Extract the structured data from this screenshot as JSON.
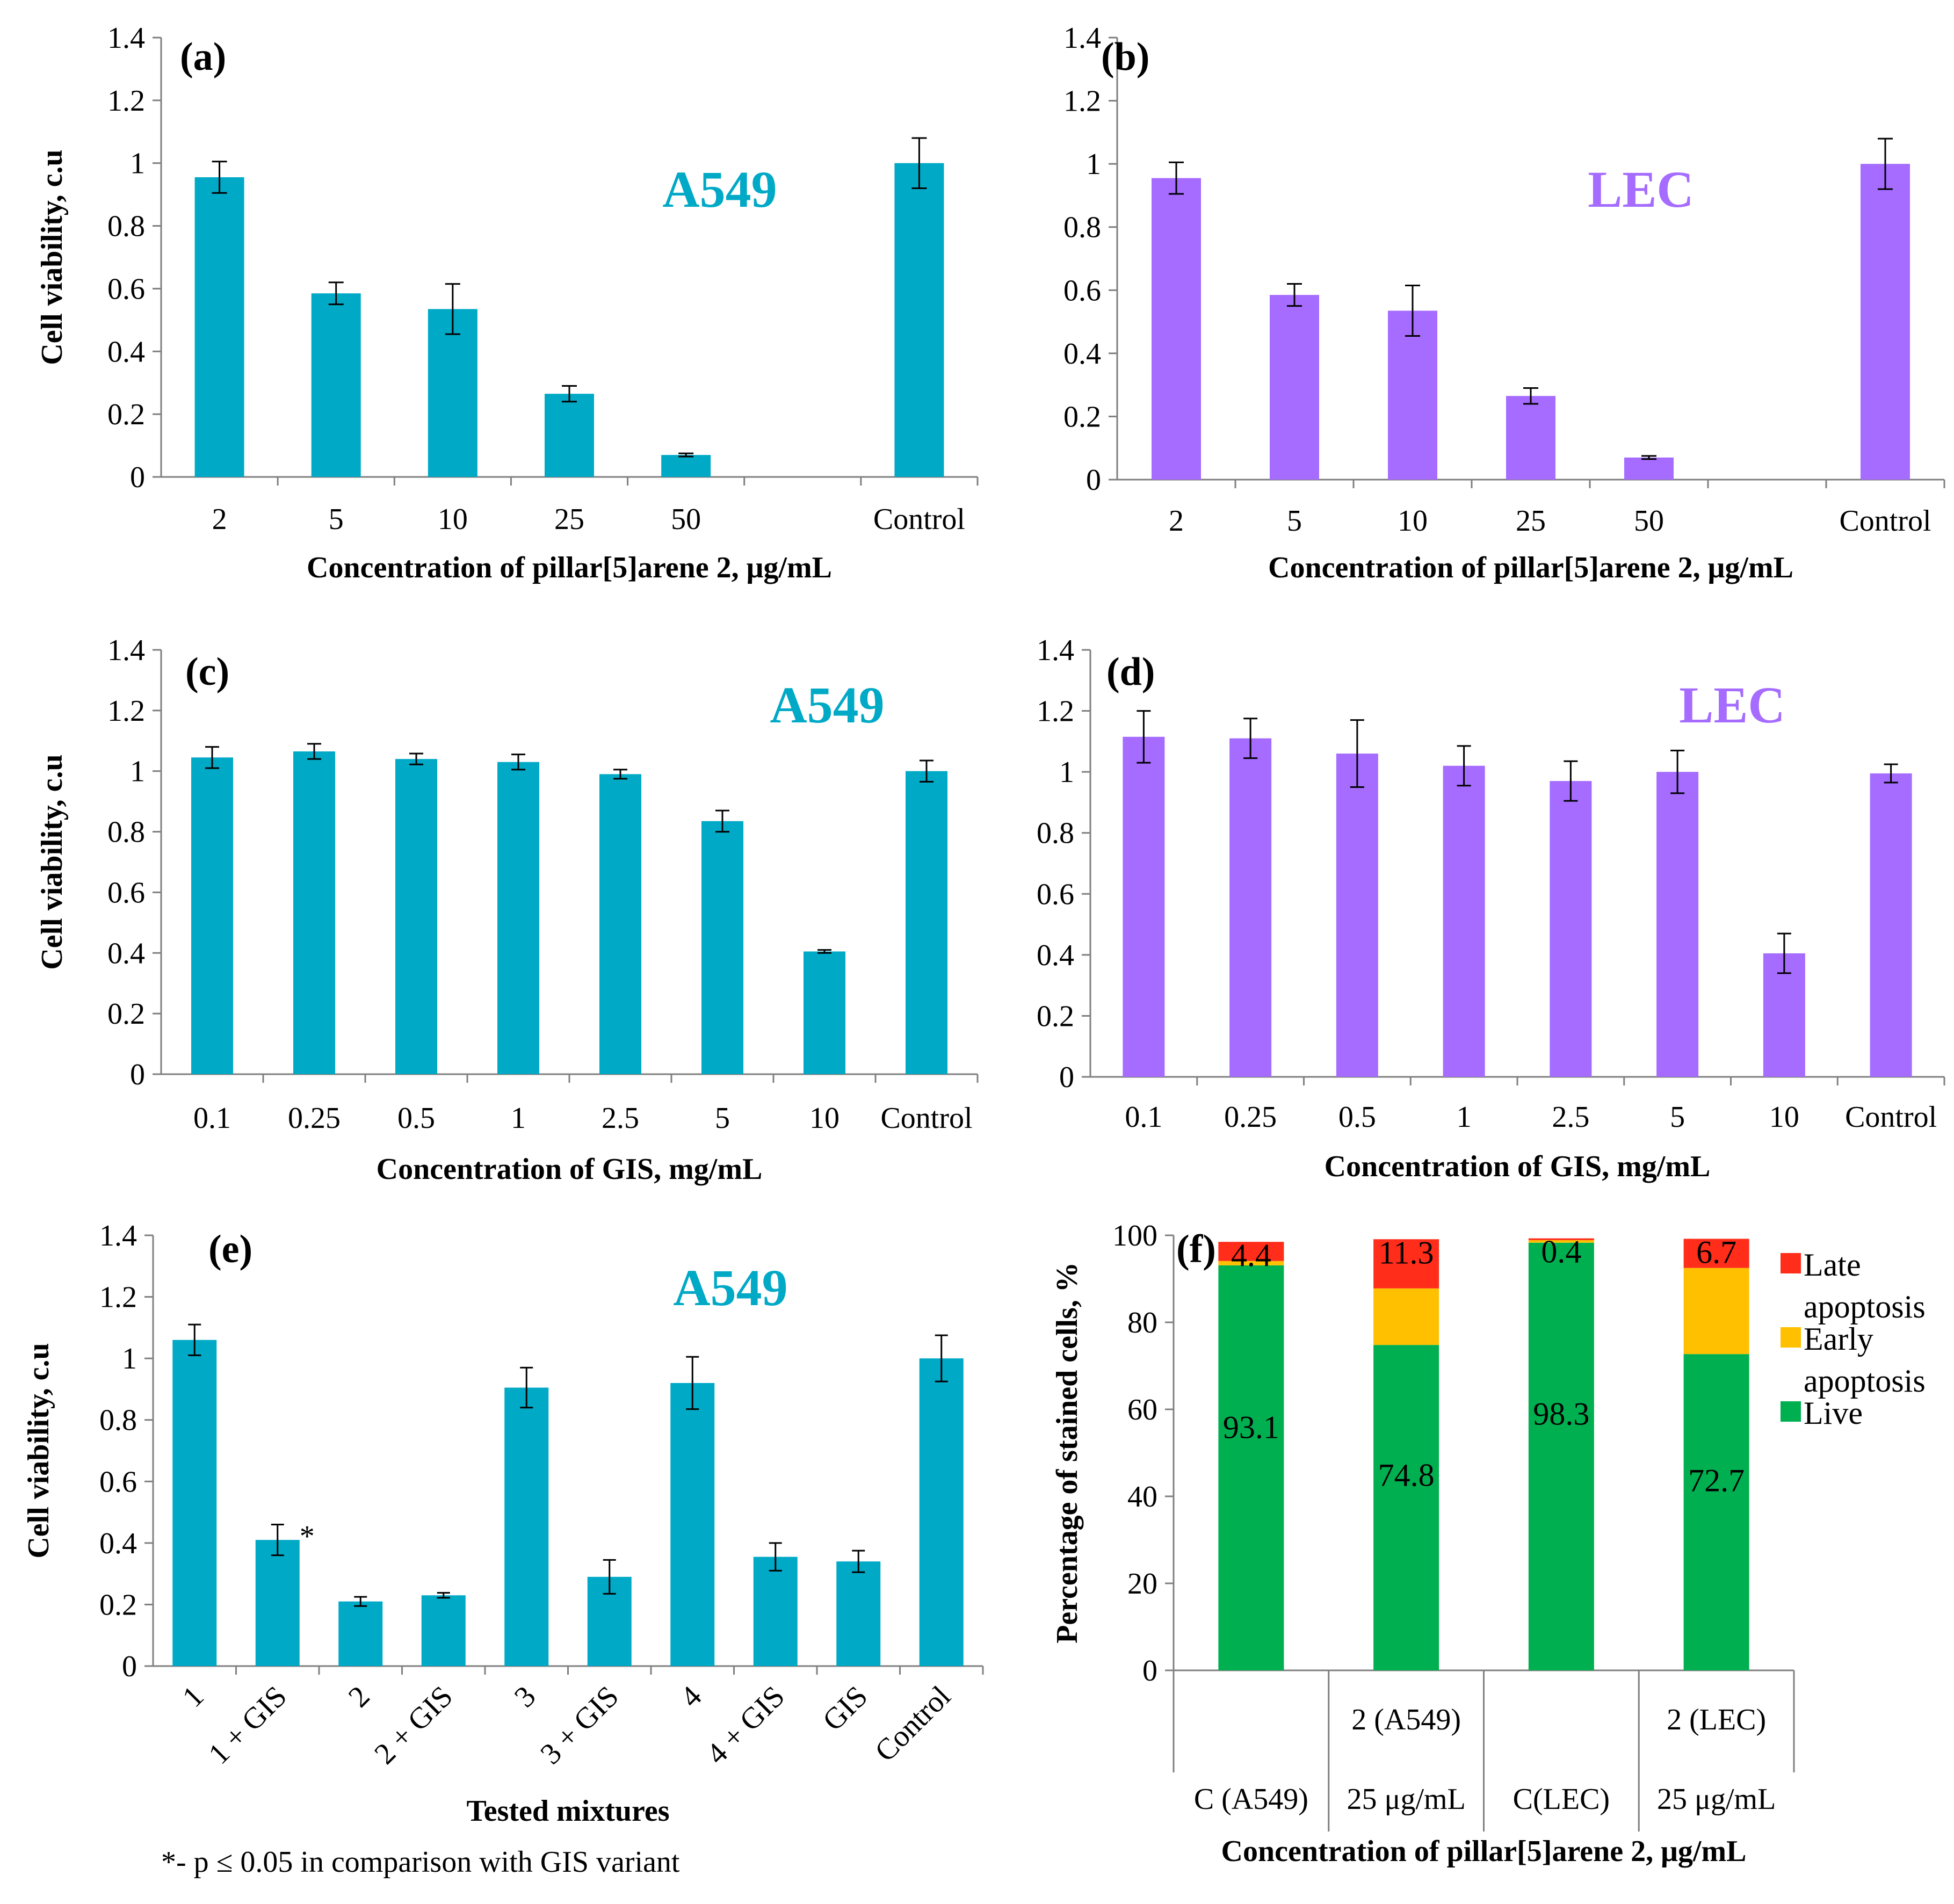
{
  "colors": {
    "a549": "#00a9c6",
    "lec": "#a56cff",
    "live": "#00b050",
    "early": "#ffc000",
    "late": "#ff2d1a",
    "axis": "#7f7f7f"
  },
  "chart_data": [
    {
      "id": "a",
      "type": "bar",
      "panel_label": "(a)",
      "cell_line": "A549",
      "color_key": "a549",
      "categories": [
        "2",
        "5",
        "10",
        "25",
        "50",
        "",
        "Control"
      ],
      "values": [
        0.955,
        0.585,
        0.535,
        0.265,
        0.07,
        null,
        1.0
      ],
      "errors": [
        0.05,
        0.035,
        0.08,
        0.025,
        0.005,
        null,
        0.08
      ],
      "ylim": [
        0,
        1.4
      ],
      "yticks": [
        "0",
        "0.2",
        "0.4",
        "0.6",
        "0.8",
        "1",
        "1.2",
        "1.4"
      ],
      "ylabel": "Cell viability, c.u",
      "xlabel": "Concentration of pillar[5]arene 2, μg/mL",
      "xlabel_rotated": false
    },
    {
      "id": "b",
      "type": "bar",
      "panel_label": "(b)",
      "cell_line": "LEC",
      "color_key": "lec",
      "categories": [
        "2",
        "5",
        "10",
        "25",
        "50",
        "",
        "Control"
      ],
      "values": [
        0.955,
        0.585,
        0.535,
        0.265,
        0.07,
        null,
        1.0
      ],
      "errors": [
        0.05,
        0.035,
        0.08,
        0.025,
        0.005,
        null,
        0.08
      ],
      "ylim": [
        0,
        1.4
      ],
      "yticks": [
        "0",
        "0.2",
        "0.4",
        "0.6",
        "0.8",
        "1",
        "1.2",
        "1.4"
      ],
      "ylabel": "",
      "xlabel": "Concentration of pillar[5]arene 2, μg/mL",
      "xlabel_rotated": false
    },
    {
      "id": "c",
      "type": "bar",
      "panel_label": "(c)",
      "cell_line": "A549",
      "color_key": "a549",
      "categories": [
        "0.1",
        "0.25",
        "0.5",
        "1",
        "2.5",
        "5",
        "10",
        "Control"
      ],
      "values": [
        1.045,
        1.065,
        1.04,
        1.03,
        0.99,
        0.835,
        0.405,
        1.0
      ],
      "errors": [
        0.035,
        0.025,
        0.018,
        0.025,
        0.015,
        0.035,
        0.005,
        0.035
      ],
      "ylim": [
        0,
        1.4
      ],
      "yticks": [
        "0",
        "0.2",
        "0.4",
        "0.6",
        "0.8",
        "1",
        "1.2",
        "1.4"
      ],
      "ylabel": "Cell viability, c.u",
      "xlabel": "Concentration of GIS, mg/mL",
      "xlabel_rotated": false
    },
    {
      "id": "d",
      "type": "bar",
      "panel_label": "(d)",
      "cell_line": "LEC",
      "color_key": "lec",
      "categories": [
        "0.1",
        "0.25",
        "0.5",
        "1",
        "2.5",
        "5",
        "10",
        "Control"
      ],
      "values": [
        1.115,
        1.11,
        1.06,
        1.02,
        0.97,
        1.0,
        0.405,
        0.995
      ],
      "errors": [
        0.085,
        0.065,
        0.11,
        0.065,
        0.065,
        0.07,
        0.065,
        0.03
      ],
      "ylim": [
        0,
        1.4
      ],
      "yticks": [
        "0",
        "0.2",
        "0.4",
        "0.6",
        "0.8",
        "1",
        "1.2",
        "1.4"
      ],
      "ylabel": "",
      "xlabel": "Concentration of GIS, mg/mL",
      "xlabel_rotated": false
    },
    {
      "id": "e",
      "type": "bar",
      "panel_label": "(e)",
      "cell_line": "A549",
      "color_key": "a549",
      "categories": [
        "1",
        "1 + GIS",
        "2",
        "2 + GIS",
        "3",
        "3 + GIS",
        "4",
        "4 + GIS",
        "GIS",
        "Control"
      ],
      "values": [
        1.06,
        0.41,
        0.21,
        0.23,
        0.905,
        0.29,
        0.92,
        0.355,
        0.34,
        1.0
      ],
      "errors": [
        0.05,
        0.05,
        0.015,
        0.008,
        0.065,
        0.055,
        0.085,
        0.045,
        0.035,
        0.075
      ],
      "significance": [
        "",
        "*",
        "",
        "",
        "",
        "",
        "",
        "",
        "",
        ""
      ],
      "ylim": [
        0,
        1.4
      ],
      "yticks": [
        "0",
        "0.2",
        "0.4",
        "0.6",
        "0.8",
        "1",
        "1.2",
        "1.4"
      ],
      "ylabel": "Cell viability, c.u",
      "xlabel": "Tested mixtures",
      "xlabel_rotated": true,
      "footnote": "*- p ≤ 0.05 in comparison with GIS variant"
    },
    {
      "id": "f",
      "type": "bar",
      "stacked": true,
      "panel_label": "(f)",
      "categories": [
        "C (A549)",
        "2 (A549) 25 μg/mL",
        "C(LEC)",
        "2 (LEC) 25 μg/mL"
      ],
      "cat_lines": [
        [
          "",
          "C (A549)"
        ],
        [
          "2 (A549)",
          "25 μg/mL"
        ],
        [
          "",
          "C(LEC)"
        ],
        [
          "2 (LEC)",
          "25 μg/mL"
        ]
      ],
      "series": [
        {
          "name": "Live",
          "color_key": "live",
          "values": [
            93.1,
            74.8,
            98.3,
            72.7
          ],
          "labels": [
            "93.1",
            "74.8",
            "98.3",
            "72.7"
          ]
        },
        {
          "name": "Early apoptosis",
          "color_key": "early",
          "values": [
            1.0,
            13.0,
            0.6,
            19.8
          ],
          "labels": [
            "",
            "",
            "",
            ""
          ]
        },
        {
          "name": "Late apoptosis",
          "color_key": "late",
          "values": [
            4.4,
            11.3,
            0.4,
            6.7
          ],
          "labels": [
            "4.4",
            "11.3",
            "0.4",
            "6.7"
          ]
        }
      ],
      "legend": [
        {
          "lines": [
            "Late",
            "apoptosis"
          ],
          "color_key": "late"
        },
        {
          "lines": [
            "Early",
            "apoptosis"
          ],
          "color_key": "early"
        },
        {
          "lines": [
            "Live"
          ],
          "color_key": "live"
        }
      ],
      "ylim": [
        0,
        100
      ],
      "yticks": [
        "0",
        "20",
        "40",
        "60",
        "80",
        "100"
      ],
      "ylabel": "Percentage of stained cells, %",
      "xlabel": "Concentration of pillar[5]arene 2, μg/mL"
    }
  ]
}
